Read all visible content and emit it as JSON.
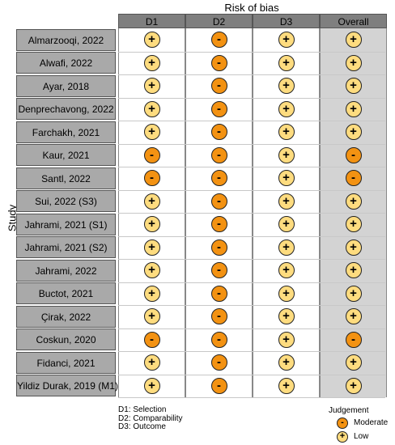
{
  "chart_data": {
    "type": "table",
    "title": "Risk of bias",
    "ylabel": "Study",
    "columns": [
      "D1",
      "D2",
      "D3",
      "Overall"
    ],
    "studies": [
      "Almarzooqi, 2022",
      "Alwafi, 2022",
      "Ayar, 2018",
      "Denprechavong, 2022",
      "Farchakh, 2021",
      "Kaur, 2021",
      "Santl, 2022",
      "Sui, 2022 (S3)",
      "Jahrami, 2021 (S1)",
      "Jahrami, 2021 (S2)",
      "Jahrami, 2022",
      "Buctot, 2021",
      "Çirak, 2022",
      "Coskun, 2020",
      "Fidanci, 2021",
      "Yildiz Durak, 2019 (M1)"
    ],
    "judgements": [
      [
        "Low",
        "Moderate",
        "Low",
        "Low"
      ],
      [
        "Low",
        "Moderate",
        "Low",
        "Low"
      ],
      [
        "Low",
        "Moderate",
        "Low",
        "Low"
      ],
      [
        "Low",
        "Moderate",
        "Low",
        "Low"
      ],
      [
        "Low",
        "Moderate",
        "Low",
        "Low"
      ],
      [
        "Moderate",
        "Moderate",
        "Low",
        "Moderate"
      ],
      [
        "Moderate",
        "Moderate",
        "Low",
        "Moderate"
      ],
      [
        "Low",
        "Moderate",
        "Low",
        "Low"
      ],
      [
        "Low",
        "Moderate",
        "Low",
        "Low"
      ],
      [
        "Low",
        "Moderate",
        "Low",
        "Low"
      ],
      [
        "Low",
        "Moderate",
        "Low",
        "Low"
      ],
      [
        "Low",
        "Moderate",
        "Low",
        "Low"
      ],
      [
        "Low",
        "Moderate",
        "Low",
        "Low"
      ],
      [
        "Moderate",
        "Moderate",
        "Low",
        "Moderate"
      ],
      [
        "Low",
        "Moderate",
        "Low",
        "Low"
      ],
      [
        "Low",
        "Moderate",
        "Low",
        "Low"
      ]
    ],
    "domain_notes": [
      "D1: Selection",
      "D2: Comparability",
      "D3: Outcome"
    ],
    "legend": {
      "title": "Judgement",
      "items": [
        {
          "label": "Moderate",
          "symbol": "-",
          "color": "#f39212"
        },
        {
          "label": "Low",
          "symbol": "+",
          "color": "#fedc7f"
        }
      ]
    },
    "colors": {
      "overall_column": "#d3d3d3",
      "header": "#7f7f7f",
      "study_label": "#a9a9a9"
    }
  }
}
